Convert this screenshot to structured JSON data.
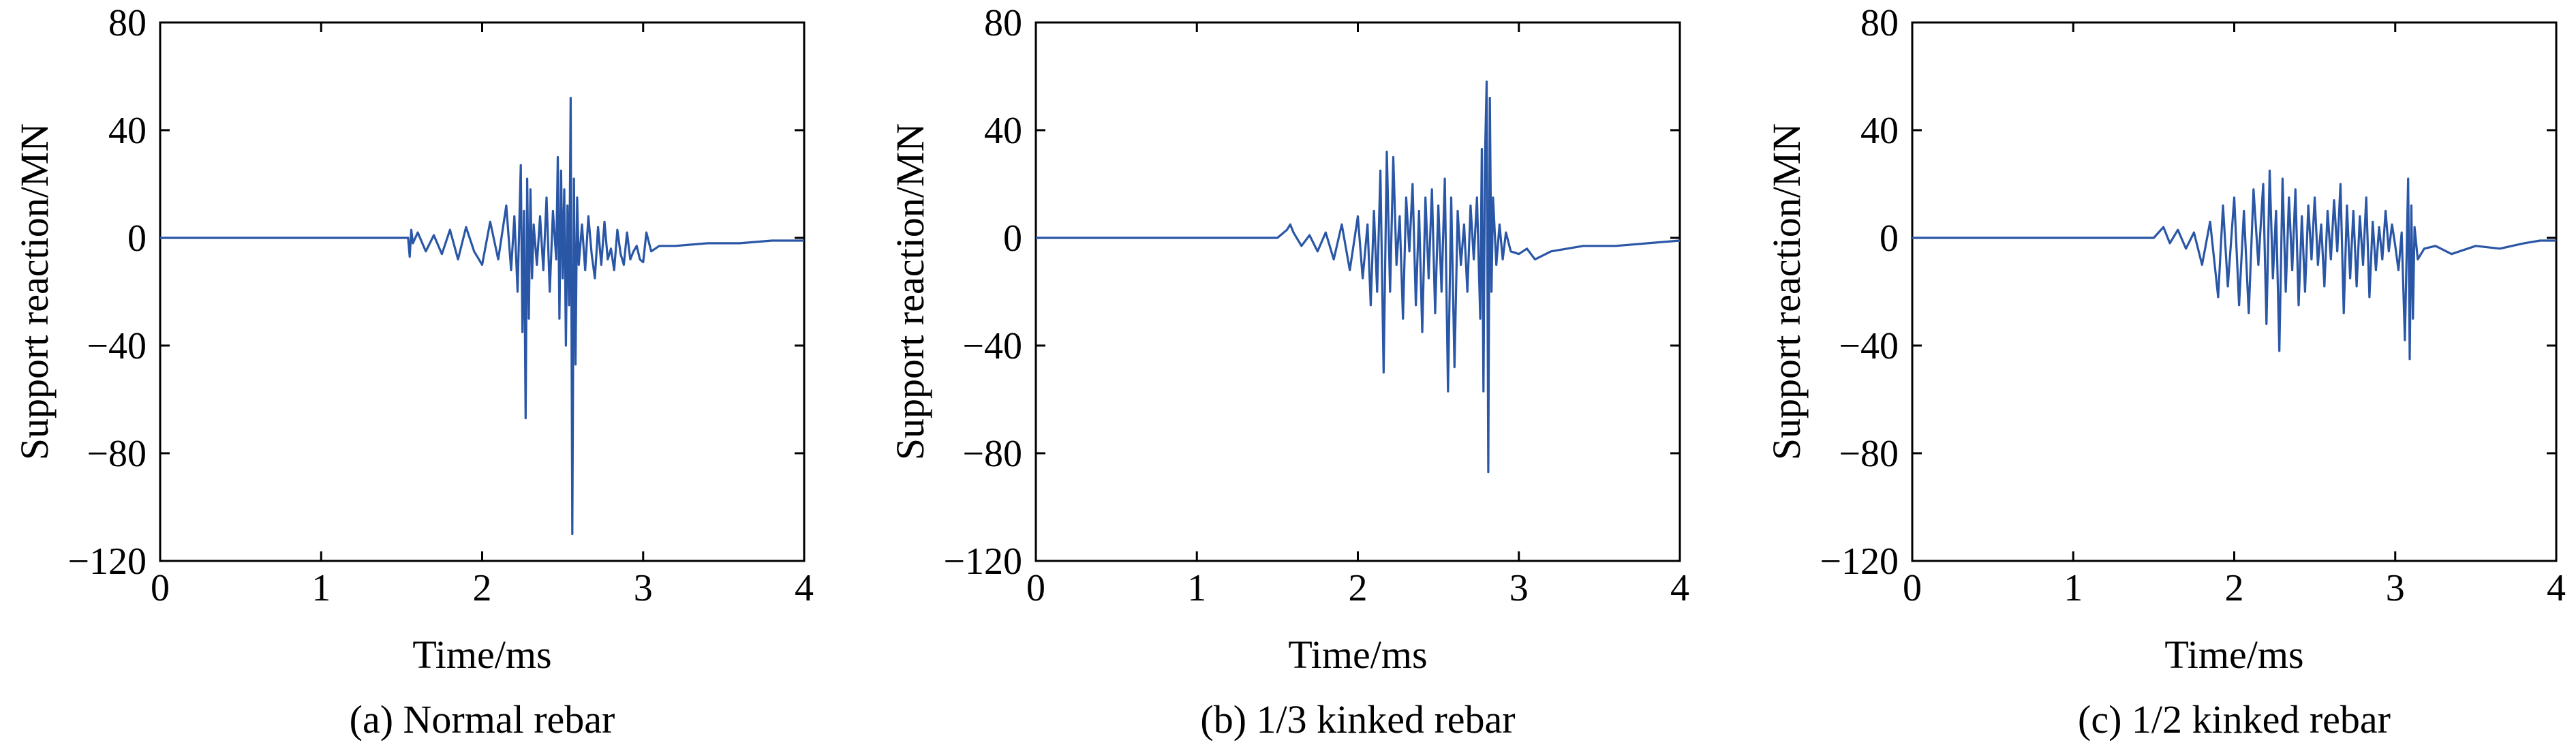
{
  "chart_data": [
    {
      "type": "line",
      "caption": "(a) Normal rebar",
      "xlabel": "Time/ms",
      "ylabel": "Support reaction/MN",
      "xlim": [
        0,
        4
      ],
      "ylim": [
        -120,
        80
      ],
      "xticks": [
        "0",
        "1",
        "2",
        "3",
        "4"
      ],
      "yticks": [
        "80",
        "40",
        "0",
        "−40",
        "−80",
        "−120"
      ],
      "color": "#2a56a6",
      "series": [
        {
          "x": [
            0,
            0.5,
            1.0,
            1.4,
            1.54,
            1.55,
            1.56,
            1.57,
            1.6,
            1.65,
            1.7,
            1.75,
            1.8,
            1.85,
            1.9,
            1.95,
            2.0,
            2.05,
            2.1,
            2.15,
            2.18,
            2.2,
            2.22,
            2.24,
            2.25,
            2.26,
            2.27,
            2.28,
            2.29,
            2.3,
            2.31,
            2.32,
            2.34,
            2.36,
            2.38,
            2.4,
            2.42,
            2.44,
            2.46,
            2.47,
            2.48,
            2.49,
            2.5,
            2.51,
            2.52,
            2.53,
            2.54,
            2.55,
            2.56,
            2.57,
            2.58,
            2.59,
            2.6,
            2.62,
            2.64,
            2.66,
            2.68,
            2.7,
            2.72,
            2.74,
            2.76,
            2.78,
            2.8,
            2.82,
            2.84,
            2.86,
            2.88,
            2.9,
            2.92,
            2.94,
            2.96,
            2.98,
            3.0,
            3.02,
            3.05,
            3.1,
            3.2,
            3.4,
            3.6,
            3.8,
            4.0
          ],
          "y": [
            0,
            0,
            0,
            0,
            0,
            -7,
            3,
            -2,
            2,
            -5,
            1,
            -6,
            3,
            -8,
            4,
            -5,
            -10,
            6,
            -8,
            12,
            -12,
            8,
            -20,
            27,
            -35,
            10,
            -67,
            22,
            -30,
            18,
            -15,
            5,
            -10,
            8,
            -12,
            15,
            -20,
            10,
            -8,
            30,
            -30,
            25,
            -15,
            18,
            -40,
            12,
            -25,
            52,
            -110,
            22,
            -47,
            15,
            -10,
            5,
            -12,
            8,
            -6,
            -15,
            4,
            -10,
            6,
            -8,
            -4,
            -12,
            3,
            -6,
            -10,
            2,
            -8,
            -5,
            -3,
            -8,
            -9,
            2,
            -5,
            -3,
            -3,
            -2,
            -2,
            -1,
            -1
          ]
        }
      ]
    },
    {
      "type": "line",
      "caption": "(b) 1/3 kinked rebar",
      "xlabel": "Time/ms",
      "ylabel": "Support reaction/MN",
      "xlim": [
        0,
        4
      ],
      "ylim": [
        -120,
        80
      ],
      "xticks": [
        "0",
        "1",
        "2",
        "3",
        "4"
      ],
      "yticks": [
        "80",
        "40",
        "0",
        "−40",
        "−80",
        "−120"
      ],
      "color": "#2a56a6",
      "series": [
        {
          "x": [
            0,
            0.5,
            1.0,
            1.5,
            1.56,
            1.58,
            1.6,
            1.65,
            1.7,
            1.75,
            1.8,
            1.85,
            1.9,
            1.95,
            2.0,
            2.03,
            2.06,
            2.08,
            2.1,
            2.12,
            2.14,
            2.16,
            2.18,
            2.2,
            2.22,
            2.24,
            2.26,
            2.28,
            2.3,
            2.32,
            2.34,
            2.36,
            2.38,
            2.4,
            2.42,
            2.44,
            2.46,
            2.48,
            2.5,
            2.52,
            2.54,
            2.56,
            2.58,
            2.6,
            2.62,
            2.64,
            2.66,
            2.68,
            2.7,
            2.72,
            2.74,
            2.76,
            2.77,
            2.78,
            2.79,
            2.8,
            2.81,
            2.82,
            2.83,
            2.84,
            2.86,
            2.88,
            2.9,
            2.92,
            2.95,
            3.0,
            3.05,
            3.1,
            3.2,
            3.4,
            3.6,
            3.8,
            4.0
          ],
          "y": [
            0,
            0,
            0,
            0,
            3,
            5,
            2,
            -3,
            1,
            -5,
            2,
            -8,
            5,
            -12,
            8,
            -15,
            5,
            -25,
            10,
            -20,
            25,
            -50,
            32,
            -20,
            30,
            -10,
            8,
            -30,
            15,
            -5,
            20,
            -25,
            10,
            -35,
            15,
            -15,
            18,
            -28,
            12,
            -20,
            22,
            -57,
            15,
            -48,
            10,
            -10,
            5,
            -20,
            12,
            -8,
            15,
            -30,
            33,
            -57,
            30,
            58,
            -87,
            52,
            -20,
            15,
            -10,
            5,
            -8,
            2,
            -5,
            -6,
            -4,
            -8,
            -5,
            -3,
            -3,
            -2,
            -1
          ]
        }
      ]
    },
    {
      "type": "line",
      "caption": "(c) 1/2 kinked rebar",
      "xlabel": "Time/ms",
      "ylabel": "Support reaction/MN",
      "xlim": [
        0,
        4
      ],
      "ylim": [
        -120,
        80
      ],
      "xticks": [
        "0",
        "1",
        "2",
        "3",
        "4"
      ],
      "yticks": [
        "80",
        "40",
        "0",
        "−40",
        "−80",
        "−120"
      ],
      "color": "#2a56a6",
      "series": [
        {
          "x": [
            0,
            0.5,
            1.0,
            1.5,
            1.56,
            1.6,
            1.65,
            1.7,
            1.75,
            1.8,
            1.85,
            1.9,
            1.93,
            1.96,
            2.0,
            2.03,
            2.06,
            2.09,
            2.12,
            2.15,
            2.18,
            2.2,
            2.22,
            2.24,
            2.26,
            2.28,
            2.3,
            2.32,
            2.34,
            2.36,
            2.38,
            2.4,
            2.42,
            2.44,
            2.46,
            2.48,
            2.5,
            2.52,
            2.54,
            2.56,
            2.58,
            2.6,
            2.62,
            2.64,
            2.66,
            2.68,
            2.7,
            2.72,
            2.74,
            2.76,
            2.78,
            2.8,
            2.82,
            2.84,
            2.86,
            2.88,
            2.9,
            2.92,
            2.94,
            2.96,
            2.98,
            3.0,
            3.02,
            3.04,
            3.06,
            3.08,
            3.09,
            3.1,
            3.11,
            3.12,
            3.14,
            3.18,
            3.25,
            3.35,
            3.5,
            3.65,
            3.8,
            3.9,
            4.0
          ],
          "y": [
            0,
            0,
            0,
            0,
            4,
            -2,
            3,
            -4,
            2,
            -10,
            6,
            -22,
            12,
            -18,
            15,
            -25,
            10,
            -28,
            18,
            -10,
            20,
            -32,
            25,
            -15,
            10,
            -42,
            22,
            -20,
            15,
            -12,
            18,
            -25,
            8,
            -20,
            12,
            -8,
            15,
            -10,
            5,
            -18,
            10,
            -8,
            14,
            -5,
            20,
            -28,
            12,
            -15,
            10,
            -18,
            8,
            -10,
            15,
            -22,
            6,
            -12,
            4,
            -8,
            10,
            -5,
            5,
            -3,
            -12,
            2,
            -38,
            22,
            -45,
            12,
            -30,
            4,
            -8,
            -4,
            -3,
            -6,
            -3,
            -4,
            -2,
            -1,
            -1
          ]
        }
      ]
    }
  ]
}
